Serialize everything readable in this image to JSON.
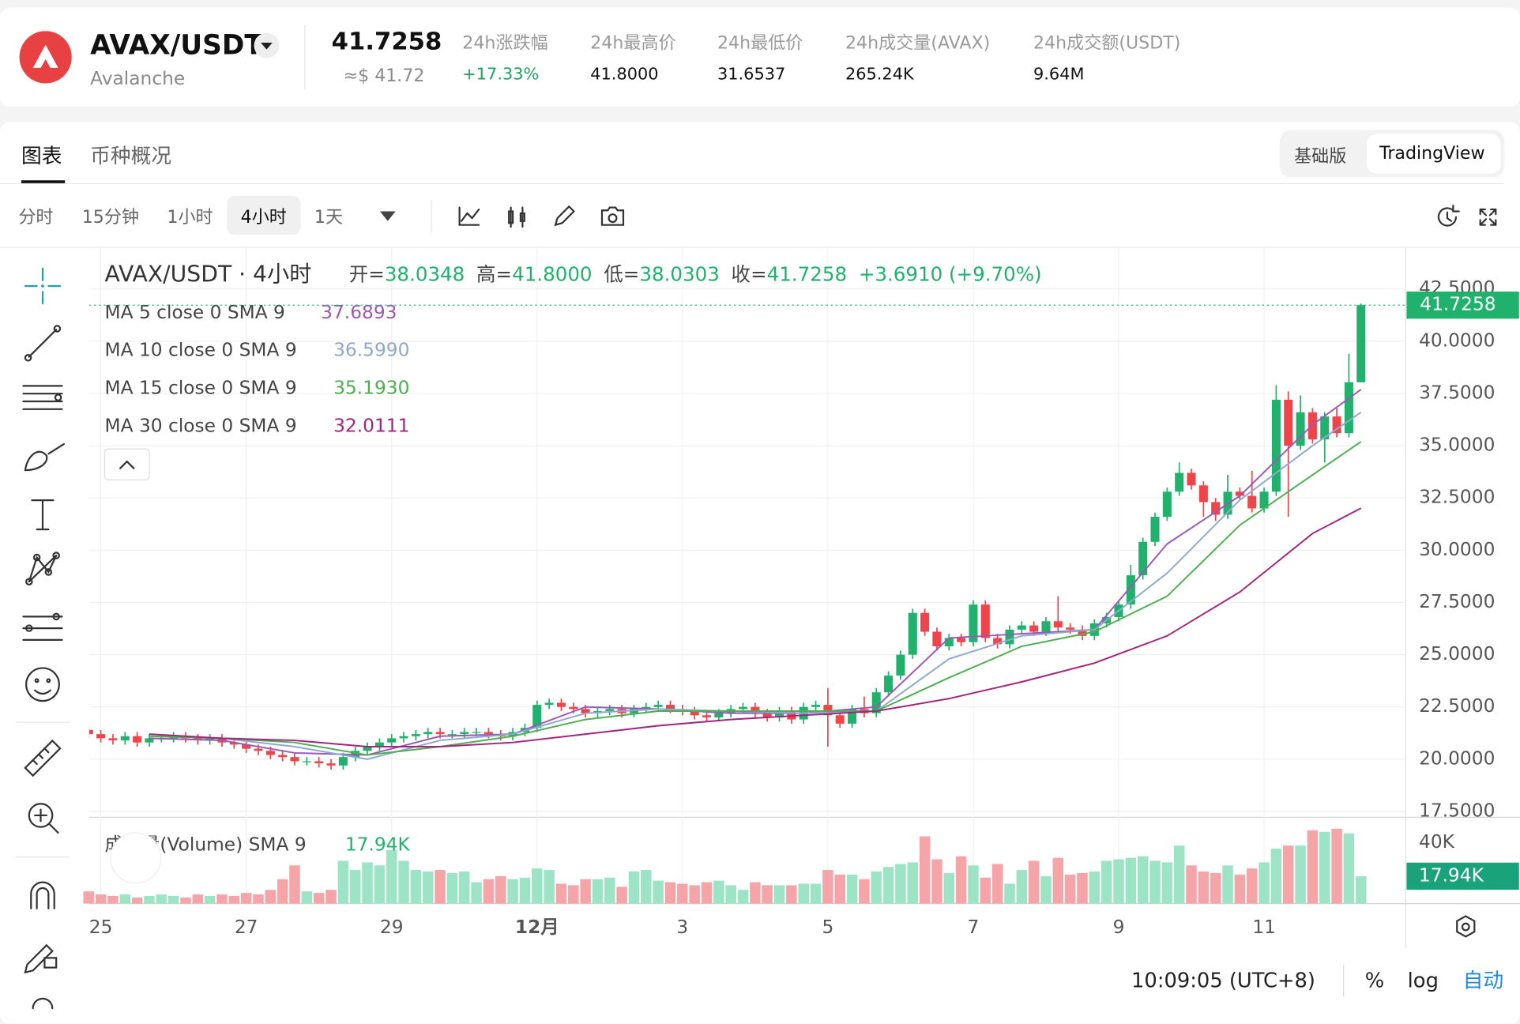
{
  "header": {
    "symbol": "AVAX/USDT",
    "name": "Avalanche",
    "price": "41.7258",
    "price_usd": "≈$ 41.72",
    "stats": [
      {
        "label": "24h涨跌幅",
        "value": "+17.33%"
      },
      {
        "label": "24h最高价",
        "value": "41.8000"
      },
      {
        "label": "24h最低价",
        "value": "31.6537"
      },
      {
        "label": "24h成交量(AVAX)",
        "value": "265.24K"
      },
      {
        "label": "24h成交额(USDT)",
        "value": "9.64M"
      }
    ]
  },
  "tabs": [
    "图表",
    "币种概况"
  ],
  "view_toggle": [
    "基础版",
    "TradingView"
  ],
  "intervals": [
    "分时",
    "15分钟",
    "1小时",
    "4小时",
    "1天"
  ],
  "footer": {
    "time": "10:09:05 (UTC+8)",
    "scale_buttons": [
      "%",
      "log",
      "自动"
    ]
  },
  "chart_data": {
    "type": "candlestick",
    "title": "AVAX/USDT · 4小时",
    "ohlc_legend": [
      {
        "label": "开=",
        "text": "38.0348"
      },
      {
        "label": "高=",
        "text": "41.8000"
      },
      {
        "label": "低=",
        "text": "38.0303"
      },
      {
        "label": "收=",
        "text": "41.7258"
      }
    ],
    "change": "+3.6910 (+9.70%)",
    "up_color": "#20b26c",
    "down_color": "#ef454a",
    "categories": [
      null,
      "25",
      null,
      null,
      null,
      null,
      null,
      null,
      null,
      null,
      null,
      null,
      null,
      "27",
      null,
      null,
      null,
      null,
      null,
      null,
      null,
      null,
      null,
      null,
      null,
      "29",
      null,
      null,
      null,
      null,
      null,
      null,
      null,
      null,
      null,
      null,
      null,
      "12月",
      null,
      null,
      null,
      null,
      null,
      null,
      null,
      null,
      null,
      null,
      null,
      "3",
      null,
      null,
      null,
      null,
      null,
      null,
      null,
      null,
      null,
      null,
      null,
      "5",
      null,
      null,
      null,
      null,
      null,
      null,
      null,
      null,
      null,
      null,
      null,
      "7",
      null,
      null,
      null,
      null,
      null,
      null,
      null,
      null,
      null,
      null,
      null,
      "9",
      null,
      null,
      null,
      null,
      null,
      null,
      null,
      null,
      null,
      null,
      null,
      "11",
      null,
      null,
      null,
      null,
      null,
      null,
      null,
      null
    ],
    "open": [
      21.4,
      21.2,
      21.0,
      20.9,
      21.1,
      20.8,
      21.0,
      21.0,
      21.1,
      21.0,
      20.9,
      21.0,
      20.8,
      20.7,
      20.5,
      20.4,
      20.2,
      20.1,
      19.9,
      19.9,
      19.8,
      19.7,
      20.1,
      20.4,
      20.6,
      20.8,
      21.0,
      21.1,
      21.2,
      21.3,
      21.2,
      21.2,
      21.3,
      21.3,
      21.2,
      21.1,
      21.3,
      21.5,
      22.6,
      22.7,
      22.5,
      22.4,
      22.2,
      22.3,
      22.4,
      22.2,
      22.4,
      22.5,
      22.6,
      22.4,
      22.3,
      22.1,
      22.0,
      22.2,
      22.4,
      22.5,
      22.2,
      22.0,
      22.3,
      21.9,
      22.5,
      22.6,
      22.1,
      21.7,
      22.4,
      22.2,
      23.2,
      24.0,
      25.0,
      27.0,
      26.1,
      25.4,
      25.8,
      25.6,
      27.4,
      25.8,
      25.5,
      26.2,
      26.4,
      26.1,
      26.6,
      26.3,
      26.2,
      25.9,
      26.5,
      26.8,
      27.4,
      28.8,
      30.4,
      31.6,
      32.8,
      33.7,
      33.1,
      32.3,
      31.7,
      32.8,
      32.6,
      32.0,
      32.8,
      37.2,
      35.0,
      36.6,
      35.3,
      36.4,
      35.6,
      38.0348
    ],
    "high": [
      21.6,
      21.4,
      21.2,
      21.3,
      21.3,
      21.2,
      21.2,
      21.3,
      21.3,
      21.2,
      21.2,
      21.2,
      21.0,
      20.9,
      20.7,
      20.6,
      20.4,
      20.3,
      20.1,
      20.1,
      20.0,
      20.3,
      20.6,
      20.8,
      21.0,
      21.2,
      21.3,
      21.4,
      21.5,
      21.5,
      21.4,
      21.5,
      21.5,
      21.5,
      21.4,
      21.5,
      21.7,
      22.8,
      22.9,
      22.9,
      22.7,
      22.6,
      22.5,
      22.6,
      22.6,
      22.6,
      22.7,
      22.8,
      22.8,
      22.6,
      22.5,
      22.3,
      22.4,
      22.6,
      22.7,
      22.7,
      22.4,
      22.5,
      22.5,
      22.7,
      22.8,
      23.4,
      22.3,
      22.6,
      23.0,
      23.4,
      24.2,
      25.2,
      27.2,
      27.2,
      26.3,
      26.0,
      26.0,
      27.6,
      27.6,
      26.0,
      26.4,
      26.6,
      26.6,
      26.8,
      27.8,
      26.5,
      26.4,
      26.7,
      27.0,
      27.6,
      29.3,
      30.6,
      31.8,
      33.0,
      34.2,
      33.9,
      33.3,
      32.5,
      33.6,
      33.0,
      33.8,
      33.0,
      37.9,
      37.6,
      37.4,
      36.8,
      36.6,
      36.8,
      39.4,
      41.8
    ],
    "low": [
      21.0,
      20.8,
      20.7,
      20.7,
      20.6,
      20.6,
      20.8,
      20.8,
      20.8,
      20.7,
      20.7,
      20.6,
      20.5,
      20.3,
      20.2,
      20.0,
      19.9,
      19.7,
      19.7,
      19.6,
      19.5,
      19.5,
      19.9,
      20.2,
      20.4,
      20.6,
      20.8,
      20.9,
      21.0,
      21.0,
      21.0,
      21.0,
      21.1,
      21.0,
      20.9,
      20.9,
      21.1,
      21.3,
      22.4,
      22.3,
      22.2,
      22.0,
      22.0,
      22.1,
      22.0,
      22.0,
      22.2,
      22.3,
      22.2,
      22.1,
      21.9,
      21.8,
      21.8,
      22.0,
      22.2,
      22.0,
      21.8,
      21.8,
      21.7,
      21.7,
      22.3,
      20.6,
      21.5,
      21.5,
      22.0,
      22.0,
      23.0,
      23.8,
      24.8,
      25.9,
      25.2,
      25.2,
      25.4,
      25.4,
      25.6,
      25.3,
      25.3,
      26.0,
      25.9,
      25.9,
      26.1,
      26.0,
      25.7,
      25.7,
      26.3,
      26.6,
      27.2,
      28.6,
      30.2,
      31.4,
      32.6,
      32.9,
      31.6,
      31.4,
      31.5,
      32.4,
      31.8,
      31.8,
      32.6,
      31.6,
      34.8,
      35.1,
      34.2,
      35.4,
      35.4,
      38.0303
    ],
    "close": [
      21.2,
      21.0,
      20.9,
      21.1,
      20.8,
      21.0,
      21.0,
      21.1,
      21.0,
      20.9,
      21.0,
      20.8,
      20.7,
      20.5,
      20.4,
      20.2,
      20.1,
      19.9,
      19.9,
      19.8,
      19.7,
      20.1,
      20.4,
      20.6,
      20.8,
      21.0,
      21.1,
      21.2,
      21.3,
      21.2,
      21.2,
      21.3,
      21.3,
      21.2,
      21.1,
      21.3,
      21.5,
      22.6,
      22.7,
      22.5,
      22.4,
      22.2,
      22.3,
      22.4,
      22.2,
      22.4,
      22.5,
      22.6,
      22.4,
      22.3,
      22.1,
      22.0,
      22.2,
      22.4,
      22.5,
      22.2,
      22.0,
      22.3,
      21.9,
      22.5,
      22.6,
      22.1,
      21.7,
      22.4,
      22.2,
      23.2,
      24.0,
      25.0,
      27.0,
      26.1,
      25.4,
      25.8,
      25.6,
      27.4,
      25.8,
      25.5,
      26.2,
      26.4,
      26.1,
      26.6,
      26.3,
      26.2,
      25.9,
      26.5,
      26.8,
      27.4,
      28.8,
      30.4,
      31.6,
      32.8,
      33.7,
      33.1,
      32.3,
      31.7,
      32.8,
      32.6,
      32.0,
      32.8,
      37.2,
      35.0,
      36.6,
      35.3,
      36.4,
      35.6,
      38.0348,
      41.7258
    ],
    "ylim": [
      17.22,
      44.45
    ],
    "yticks": [
      {
        "value": 17.5,
        "label": "17.5000"
      },
      {
        "value": 20,
        "label": "20.0000"
      },
      {
        "value": 22.5,
        "label": "22.5000"
      },
      {
        "value": 25,
        "label": "25.0000"
      },
      {
        "value": 27.5,
        "label": "27.5000"
      },
      {
        "value": 30,
        "label": "30.0000"
      },
      {
        "value": 32.5,
        "label": "32.5000"
      },
      {
        "value": 35,
        "label": "35.0000"
      },
      {
        "value": 37.5,
        "label": "37.5000"
      },
      {
        "value": 40,
        "label": "40.0000"
      },
      {
        "value": 42.5,
        "label": "42.5000"
      }
    ],
    "grid": true,
    "ma_x": [
      5,
      11,
      17,
      23,
      29,
      35,
      41,
      47,
      53,
      59,
      65,
      71,
      77,
      83,
      89,
      95,
      101,
      105
    ],
    "ma_lines": [
      {
        "name": "MA 5 close 0 SMA 9",
        "color": "#9b59b6",
        "value_label": "37.6893",
        "values": [
          21.0,
          20.9,
          20.3,
          20.2,
          21.1,
          21.2,
          22.5,
          22.4,
          22.2,
          22.2,
          22.5,
          25.8,
          26.0,
          26.2,
          30.3,
          32.6,
          36.0,
          37.6893
        ]
      },
      {
        "name": "MA 10 close 0 SMA 9",
        "color": "#8fa9cc",
        "value_label": "36.5990",
        "values": [
          21.1,
          21.0,
          20.6,
          20.0,
          20.9,
          21.2,
          22.2,
          22.4,
          22.3,
          22.2,
          22.3,
          24.8,
          25.9,
          26.2,
          28.9,
          32.4,
          35.0,
          36.599
        ]
      },
      {
        "name": "MA 15 close 0 SMA 9",
        "color": "#4caf50",
        "value_label": "35.1930",
        "values": [
          21.1,
          21.0,
          20.8,
          20.2,
          20.6,
          21.1,
          21.9,
          22.3,
          22.3,
          22.3,
          22.3,
          23.9,
          25.4,
          26.1,
          27.8,
          31.2,
          33.6,
          35.193
        ]
      },
      {
        "name": "MA 30 close 0 SMA 9",
        "color": "#a3237f",
        "value_label": "32.0111",
        "values": [
          21.2,
          21.0,
          20.9,
          20.6,
          20.6,
          20.8,
          21.2,
          21.6,
          21.9,
          22.1,
          22.3,
          22.9,
          23.7,
          24.6,
          25.9,
          28.0,
          30.8,
          32.0111
        ]
      }
    ],
    "volume": {
      "name": "成交量(Volume) SMA 9",
      "value_label": "17.94K",
      "ylim": [
        0,
        55238
      ],
      "yticks": [
        {
          "value": 40000,
          "label": "40K"
        }
      ],
      "up_color": "#9de3c6",
      "down_color": "#f5a5a7",
      "values": [
        8000,
        6000,
        5000,
        6000,
        4000,
        5000,
        6000,
        5000,
        4000,
        6000,
        5000,
        6000,
        5000,
        7000,
        6000,
        9000,
        16000,
        25000,
        8000,
        7000,
        9000,
        28000,
        22000,
        27000,
        25000,
        35000,
        28000,
        22000,
        21000,
        22000,
        20000,
        21000,
        14000,
        16000,
        18000,
        16000,
        17000,
        23000,
        22000,
        13000,
        12000,
        16000,
        16000,
        17000,
        11000,
        21000,
        22000,
        15000,
        14000,
        13000,
        12000,
        14000,
        15000,
        12000,
        9000,
        14000,
        12000,
        12000,
        12000,
        13000,
        13000,
        22000,
        19000,
        19000,
        16000,
        21000,
        24000,
        26000,
        27000,
        44000,
        29000,
        20000,
        31000,
        25000,
        17000,
        26000,
        13000,
        22000,
        28000,
        18000,
        30000,
        19000,
        20000,
        21000,
        28000,
        29000,
        30000,
        31000,
        28000,
        27000,
        38000,
        25000,
        21000,
        20000,
        25000,
        19000,
        23000,
        27000,
        36000,
        38000,
        38000,
        48000,
        47000,
        49000,
        46000,
        17940
      ]
    }
  }
}
